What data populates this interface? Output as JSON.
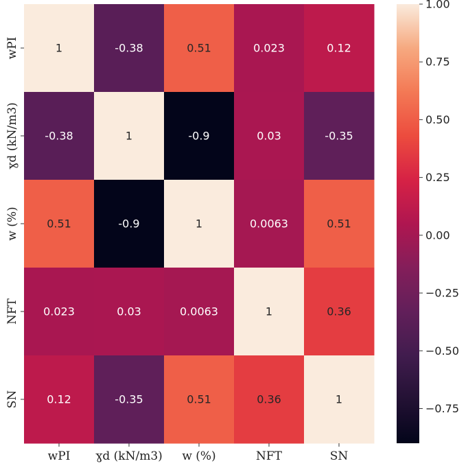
{
  "chart_data": {
    "type": "heatmap",
    "rows": [
      "wPI",
      "ɣd (kN/m3)",
      "w (%)",
      "NFT",
      "SN"
    ],
    "columns": [
      "wPI",
      "ɣd (kN/m3)",
      "w (%)",
      "NFT",
      "SN"
    ],
    "values": [
      [
        1,
        -0.38,
        0.51,
        0.023,
        0.12
      ],
      [
        -0.38,
        1,
        -0.9,
        0.03,
        -0.35
      ],
      [
        0.51,
        -0.9,
        1,
        0.0063,
        0.51
      ],
      [
        0.023,
        0.03,
        0.0063,
        1,
        0.36
      ],
      [
        0.12,
        -0.35,
        0.51,
        0.36,
        1
      ]
    ],
    "labels": [
      [
        "1",
        "-0.38",
        "0.51",
        "0.023",
        "0.12"
      ],
      [
        "-0.38",
        "1",
        "-0.9",
        "0.03",
        "-0.35"
      ],
      [
        "0.51",
        "-0.9",
        "1",
        "0.0063",
        "0.51"
      ],
      [
        "0.023",
        "0.03",
        "0.0063",
        "1",
        "0.36"
      ],
      [
        "0.12",
        "-0.35",
        "0.51",
        "0.36",
        "1"
      ]
    ],
    "colorbar": {
      "range": [
        -0.9,
        1
      ],
      "ticks": [
        1,
        0.75,
        0.5,
        0.25,
        0,
        -0.25,
        -0.5,
        -0.75
      ],
      "tick_labels": [
        "1.00",
        "0.75",
        "0.50",
        "0.25",
        "0.00",
        "−0.25",
        "−0.50",
        "−0.75"
      ],
      "colormap": "rocket"
    }
  }
}
